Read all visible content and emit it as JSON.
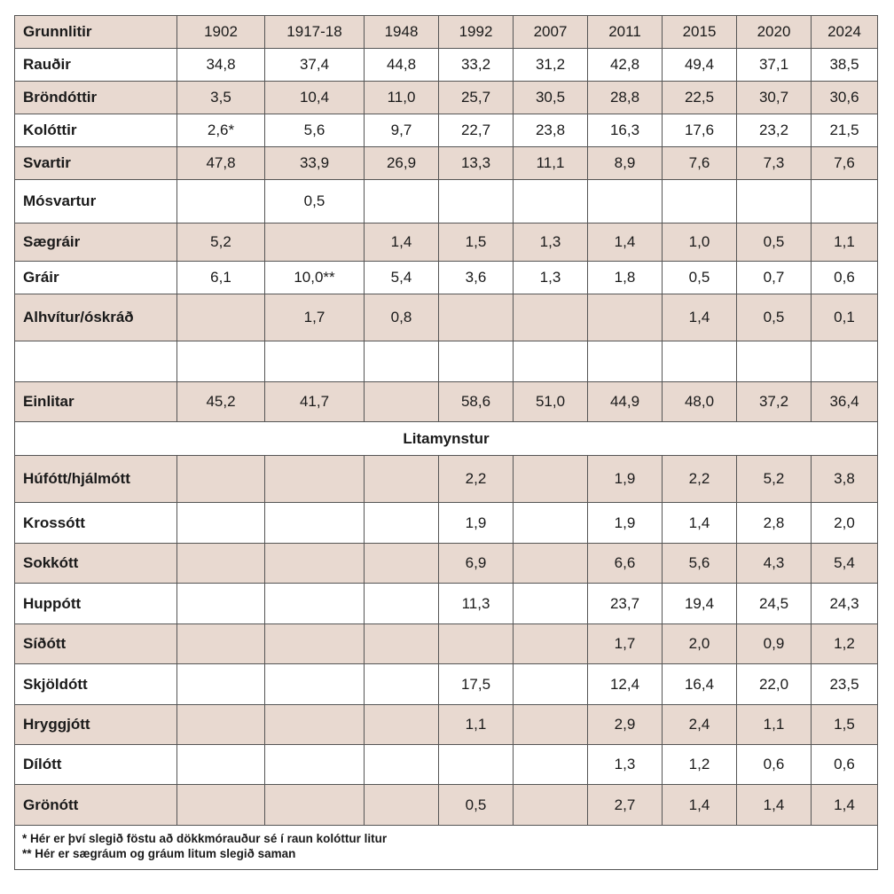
{
  "header": {
    "label": "Grunnlitir",
    "years": [
      "1902",
      "1917-18",
      "1948",
      "1992",
      "2007",
      "2011",
      "2015",
      "2020",
      "2024"
    ]
  },
  "grunnlitir_rows": [
    {
      "label": "Rauðir",
      "values": [
        "34,8",
        "37,4",
        "44,8",
        "33,2",
        "31,2",
        "42,8",
        "49,4",
        "37,1",
        "38,5"
      ]
    },
    {
      "label": "Bröndóttir",
      "values": [
        "3,5",
        "10,4",
        "11,0",
        "25,7",
        "30,5",
        "28,8",
        "22,5",
        "30,7",
        "30,6"
      ]
    },
    {
      "label": "Kolóttir",
      "values": [
        "2,6*",
        "5,6",
        "9,7",
        "22,7",
        "23,8",
        "16,3",
        "17,6",
        "23,2",
        "21,5"
      ]
    },
    {
      "label": "Svartir",
      "values": [
        "47,8",
        "33,9",
        "26,9",
        "13,3",
        "11,1",
        "8,9",
        "7,6",
        "7,3",
        "7,6"
      ]
    },
    {
      "label": "Mósvartur",
      "values": [
        "",
        "0,5",
        "",
        "",
        "",
        "",
        "",
        "",
        ""
      ]
    },
    {
      "label": "Sægráir",
      "values": [
        "5,2",
        "",
        "1,4",
        "1,5",
        "1,3",
        "1,4",
        "1,0",
        "0,5",
        "1,1"
      ]
    },
    {
      "label": "Gráir",
      "values": [
        "6,1",
        "10,0**",
        "5,4",
        "3,6",
        "1,3",
        "1,8",
        "0,5",
        "0,7",
        "0,6"
      ]
    },
    {
      "label": "Alhvítur/óskráð",
      "values": [
        "",
        "1,7",
        "0,8",
        "",
        "",
        "",
        "1,4",
        "0,5",
        "0,1"
      ]
    },
    {
      "label": "",
      "values": [
        "",
        "",
        "",
        "",
        "",
        "",
        "",
        "",
        ""
      ]
    },
    {
      "label": "Einlitar",
      "values": [
        "45,2",
        "41,7",
        "",
        "58,6",
        "51,0",
        "44,9",
        "48,0",
        "37,2",
        "36,4"
      ]
    }
  ],
  "section_title": "Litamynstur",
  "litamynstur_rows": [
    {
      "label": "Húfótt/hjálmótt",
      "values": [
        "",
        "",
        "",
        "2,2",
        "",
        "1,9",
        "2,2",
        "5,2",
        "3,8"
      ]
    },
    {
      "label": "Krossótt",
      "values": [
        "",
        "",
        "",
        "1,9",
        "",
        "1,9",
        "1,4",
        "2,8",
        "2,0"
      ]
    },
    {
      "label": "Sokkótt",
      "values": [
        "",
        "",
        "",
        "6,9",
        "",
        "6,6",
        "5,6",
        "4,3",
        "5,4"
      ]
    },
    {
      "label": "Huppótt",
      "values": [
        "",
        "",
        "",
        "11,3",
        "",
        "23,7",
        "19,4",
        "24,5",
        "24,3"
      ]
    },
    {
      "label": "Síðótt",
      "values": [
        "",
        "",
        "",
        "",
        "",
        "1,7",
        "2,0",
        "0,9",
        "1,2"
      ]
    },
    {
      "label": "Skjöldótt",
      "values": [
        "",
        "",
        "",
        "17,5",
        "",
        "12,4",
        "16,4",
        "22,0",
        "23,5"
      ]
    },
    {
      "label": "Hryggjótt",
      "values": [
        "",
        "",
        "",
        "1,1",
        "",
        "2,9",
        "2,4",
        "1,1",
        "1,5"
      ]
    },
    {
      "label": "Dílótt",
      "values": [
        "",
        "",
        "",
        "",
        "",
        "1,3",
        "1,2",
        "0,6",
        "0,6"
      ]
    },
    {
      "label": "Grönótt",
      "values": [
        "",
        "",
        "",
        "0,5",
        "",
        "2,7",
        "1,4",
        "1,4",
        "1,4"
      ]
    }
  ],
  "footnotes": [
    "* Hér er því slegið föstu að dökkmórauður sé í raun kolóttur litur",
    "** Hér er sægráum og gráum litum slegið saman"
  ],
  "colors": {
    "row_shade": "#e8d9d0",
    "border": "#555555"
  }
}
